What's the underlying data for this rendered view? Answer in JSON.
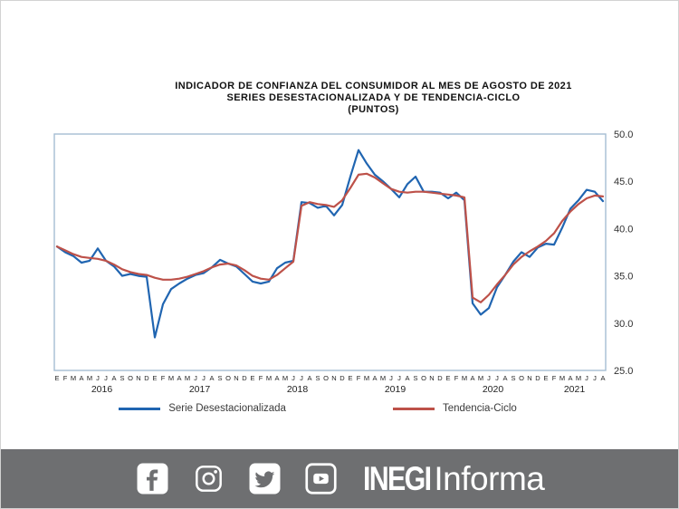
{
  "title": {
    "line1": "INDICADOR DE CONFIANZA DEL CONSUMIDOR AL MES DE AGOSTO DE 2021",
    "line2": "SERIES DESESTACIONALIZADA Y DE TENDENCIA-CICLO",
    "line3": "(PUNTOS)"
  },
  "chart_data": {
    "type": "line",
    "title": "INDICADOR DE CONFIANZA DEL CONSUMIDOR AL MES DE AGOSTO DE 2021 — SERIES DESESTACIONALIZADA Y DE TENDENCIA-CICLO (PUNTOS)",
    "xlabel": "",
    "ylabel": "",
    "ylim": [
      25.0,
      50.0
    ],
    "grid": false,
    "legend_position": "bottom",
    "y_ticks": [
      "50.0",
      "45.0",
      "40.0",
      "35.0",
      "30.0",
      "25.0"
    ],
    "years": [
      {
        "label": "2016",
        "months": "EFMAMJJASOND"
      },
      {
        "label": "2017",
        "months": "EFMAMJJASOND"
      },
      {
        "label": "2018",
        "months": "EFMAMJJASOND"
      },
      {
        "label": "2019",
        "months": "EFMAMJJASOND"
      },
      {
        "label": "2020",
        "months": "EFMAMJJASOND"
      },
      {
        "label": "2021",
        "months": "EFMAMJJA"
      }
    ],
    "series": [
      {
        "name": "Serie Desestacionalizada",
        "color": "#2065b1",
        "values": [
          38.1,
          37.5,
          37.1,
          36.4,
          36.6,
          37.9,
          36.6,
          36.0,
          35.0,
          35.2,
          35.0,
          34.9,
          28.5,
          32.0,
          33.6,
          34.2,
          34.7,
          35.1,
          35.3,
          35.9,
          36.7,
          36.3,
          36.0,
          35.2,
          34.4,
          34.2,
          34.4,
          35.8,
          36.4,
          36.6,
          42.8,
          42.7,
          42.2,
          42.4,
          41.4,
          42.5,
          45.5,
          48.3,
          46.9,
          45.7,
          45.0,
          44.2,
          43.3,
          44.7,
          45.5,
          43.9,
          43.9,
          43.8,
          43.2,
          43.8,
          43.0,
          32.1,
          30.9,
          31.6,
          33.8,
          35.1,
          36.5,
          37.5,
          37.0,
          38.0,
          38.4,
          38.3,
          40.1,
          42.1,
          43.0,
          44.1,
          43.9,
          42.9
        ]
      },
      {
        "name": "Tendencia-Ciclo",
        "color": "#bd5149",
        "values": [
          38.1,
          37.7,
          37.3,
          37.0,
          36.9,
          36.8,
          36.6,
          36.2,
          35.7,
          35.4,
          35.2,
          35.1,
          34.8,
          34.6,
          34.6,
          34.7,
          34.9,
          35.2,
          35.5,
          35.9,
          36.2,
          36.3,
          36.1,
          35.6,
          35.0,
          34.7,
          34.6,
          35.1,
          35.8,
          36.5,
          42.4,
          42.8,
          42.6,
          42.5,
          42.3,
          43.0,
          44.3,
          45.7,
          45.8,
          45.4,
          44.8,
          44.2,
          43.9,
          43.8,
          43.9,
          43.9,
          43.8,
          43.7,
          43.6,
          43.5,
          43.3,
          32.7,
          32.2,
          33.0,
          34.1,
          35.1,
          36.2,
          37.0,
          37.6,
          38.1,
          38.7,
          39.5,
          40.8,
          41.8,
          42.6,
          43.2,
          43.5,
          43.4
        ]
      }
    ]
  },
  "footer": {
    "background": "#6e6f71",
    "icons": [
      "facebook-icon",
      "instagram-icon",
      "twitter-icon",
      "youtube-icon"
    ],
    "brand_bold": "INEGI",
    "brand_regular": "Informa"
  },
  "colors": {
    "serie_desestacionalizada": "#2065b1",
    "tendencia_ciclo": "#bd5149",
    "plot_border": "#a6bdd2",
    "footer_gray": "#6e6f71"
  }
}
